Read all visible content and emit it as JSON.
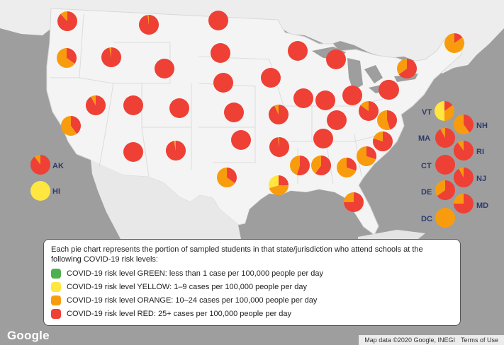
{
  "colors": {
    "green": "#4caf50",
    "yellow": "#ffe640",
    "orange": "#f89c0e",
    "red": "#ee4035"
  },
  "legend": {
    "intro": "Each pie chart represents the portion of sampled students in that state/jurisdiction who attend schools at the following COVID-19 risk levels:",
    "items": [
      {
        "label": "COVID-19 risk level GREEN: less than 1 case per 100,000 people per day",
        "color": "#4caf50"
      },
      {
        "label": "COVID-19 risk level YELLOW: 1–9 cases per 100,000 people per day",
        "color": "#ffe640"
      },
      {
        "label": "COVID-19 risk level ORANGE: 10–24 cases per 100,000 people per day",
        "color": "#f89c0e"
      },
      {
        "label": "COVID-19 risk level RED: 25+ cases per 100,000 people per day",
        "color": "#ee4035"
      }
    ]
  },
  "labels": {
    "AK": "AK",
    "HI": "HI",
    "VT": "VT",
    "NH": "NH",
    "MA": "MA",
    "RI": "RI",
    "CT": "CT",
    "NJ": "NJ",
    "DE": "DE",
    "MD": "MD",
    "DC": "DC"
  },
  "pies": [
    {
      "id": "WA",
      "red": 0.88,
      "orange": 0.12,
      "yellow": 0
    },
    {
      "id": "OR",
      "red": 0.35,
      "orange": 0.65,
      "yellow": 0
    },
    {
      "id": "CA",
      "red": 0.4,
      "orange": 0.6,
      "yellow": 0
    },
    {
      "id": "ID",
      "red": 0.97,
      "orange": 0.03,
      "yellow": 0
    },
    {
      "id": "NV",
      "red": 0.92,
      "orange": 0.08,
      "yellow": 0
    },
    {
      "id": "MT",
      "red": 0.98,
      "orange": 0.02,
      "yellow": 0
    },
    {
      "id": "WY",
      "red": 1,
      "orange": 0,
      "yellow": 0
    },
    {
      "id": "UT",
      "red": 1,
      "orange": 0,
      "yellow": 0
    },
    {
      "id": "AZ",
      "red": 1,
      "orange": 0,
      "yellow": 0
    },
    {
      "id": "CO",
      "red": 1,
      "orange": 0,
      "yellow": 0
    },
    {
      "id": "NM",
      "red": 0.97,
      "orange": 0.03,
      "yellow": 0
    },
    {
      "id": "ND",
      "red": 1,
      "orange": 0,
      "yellow": 0
    },
    {
      "id": "SD",
      "red": 1,
      "orange": 0,
      "yellow": 0
    },
    {
      "id": "NE",
      "red": 1,
      "orange": 0,
      "yellow": 0
    },
    {
      "id": "KS",
      "red": 1,
      "orange": 0,
      "yellow": 0
    },
    {
      "id": "OK",
      "red": 1,
      "orange": 0,
      "yellow": 0
    },
    {
      "id": "TX",
      "red": 0.35,
      "orange": 0.65,
      "yellow": 0
    },
    {
      "id": "MN",
      "red": 1,
      "orange": 0,
      "yellow": 0
    },
    {
      "id": "IA",
      "red": 1,
      "orange": 0,
      "yellow": 0
    },
    {
      "id": "MO",
      "red": 0.93,
      "orange": 0.07,
      "yellow": 0
    },
    {
      "id": "AR",
      "red": 0.98,
      "orange": 0.02,
      "yellow": 0
    },
    {
      "id": "LA",
      "red": 0.25,
      "orange": 0.45,
      "yellow": 0.3
    },
    {
      "id": "WI",
      "red": 1,
      "orange": 0,
      "yellow": 0
    },
    {
      "id": "IL",
      "red": 1,
      "orange": 0,
      "yellow": 0
    },
    {
      "id": "MI",
      "red": 1,
      "orange": 0,
      "yellow": 0
    },
    {
      "id": "IN",
      "red": 1,
      "orange": 0,
      "yellow": 0
    },
    {
      "id": "OH",
      "red": 1,
      "orange": 0,
      "yellow": 0
    },
    {
      "id": "KY",
      "red": 1,
      "orange": 0,
      "yellow": 0
    },
    {
      "id": "TN",
      "red": 1,
      "orange": 0,
      "yellow": 0
    },
    {
      "id": "MS",
      "red": 0.55,
      "orange": 0.45,
      "yellow": 0
    },
    {
      "id": "AL",
      "red": 0.6,
      "orange": 0.4,
      "yellow": 0
    },
    {
      "id": "GA",
      "red": 0.3,
      "orange": 0.7,
      "yellow": 0
    },
    {
      "id": "FL",
      "red": 0.75,
      "orange": 0.25,
      "yellow": 0
    },
    {
      "id": "SC",
      "red": 0.3,
      "orange": 0.7,
      "yellow": 0
    },
    {
      "id": "NC",
      "red": 0.8,
      "orange": 0.2,
      "yellow": 0
    },
    {
      "id": "VA",
      "red": 0.45,
      "orange": 0.55,
      "yellow": 0
    },
    {
      "id": "WV",
      "red": 0.85,
      "orange": 0.15,
      "yellow": 0
    },
    {
      "id": "PA",
      "red": 1,
      "orange": 0,
      "yellow": 0
    },
    {
      "id": "NY",
      "red": 0.65,
      "orange": 0.35,
      "yellow": 0
    },
    {
      "id": "ME",
      "red": 0.15,
      "orange": 0.85,
      "yellow": 0
    },
    {
      "id": "AK",
      "red": 0.9,
      "orange": 0.1,
      "yellow": 0
    },
    {
      "id": "HI",
      "red": 0,
      "orange": 0,
      "yellow": 1
    },
    {
      "id": "VT",
      "red": 0.15,
      "orange": 0.35,
      "yellow": 0.5
    },
    {
      "id": "NH",
      "red": 0.4,
      "orange": 0.6,
      "yellow": 0
    },
    {
      "id": "MA",
      "red": 0.92,
      "orange": 0.08,
      "yellow": 0
    },
    {
      "id": "RI",
      "red": 0.9,
      "orange": 0.1,
      "yellow": 0
    },
    {
      "id": "CT",
      "red": 1,
      "orange": 0,
      "yellow": 0
    },
    {
      "id": "NJ",
      "red": 0.92,
      "orange": 0.08,
      "yellow": 0
    },
    {
      "id": "DE",
      "red": 0.65,
      "orange": 0.35,
      "yellow": 0
    },
    {
      "id": "MD",
      "red": 0.75,
      "orange": 0.25,
      "yellow": 0
    },
    {
      "id": "DC",
      "red": 0,
      "orange": 1,
      "yellow": 0
    }
  ],
  "branding": {
    "logo": "Google",
    "map_data": "Map data ©2020 Google, INEGI",
    "terms": "Terms of Use"
  }
}
